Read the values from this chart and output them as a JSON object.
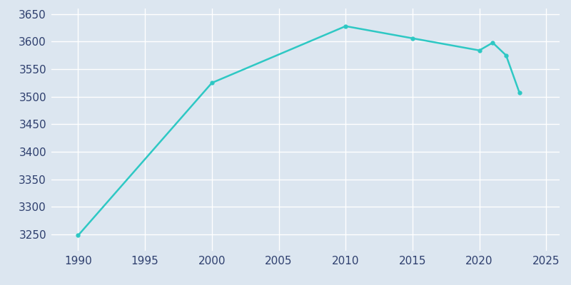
{
  "years": [
    1990,
    2000,
    2010,
    2015,
    2020,
    2021,
    2022,
    2023
  ],
  "population": [
    3248,
    3525,
    3628,
    3606,
    3584,
    3598,
    3575,
    3507
  ],
  "line_color": "#2ec8c4",
  "background_color": "#dce6f0",
  "axes_facecolor": "#dce6f0",
  "tick_label_color": "#2e3f6e",
  "xlim": [
    1988,
    2026
  ],
  "ylim": [
    3220,
    3660
  ],
  "yticks": [
    3250,
    3300,
    3350,
    3400,
    3450,
    3500,
    3550,
    3600,
    3650
  ],
  "xticks": [
    1990,
    1995,
    2000,
    2005,
    2010,
    2015,
    2020,
    2025
  ],
  "line_width": 1.8,
  "marker": "o",
  "marker_size": 3.5
}
